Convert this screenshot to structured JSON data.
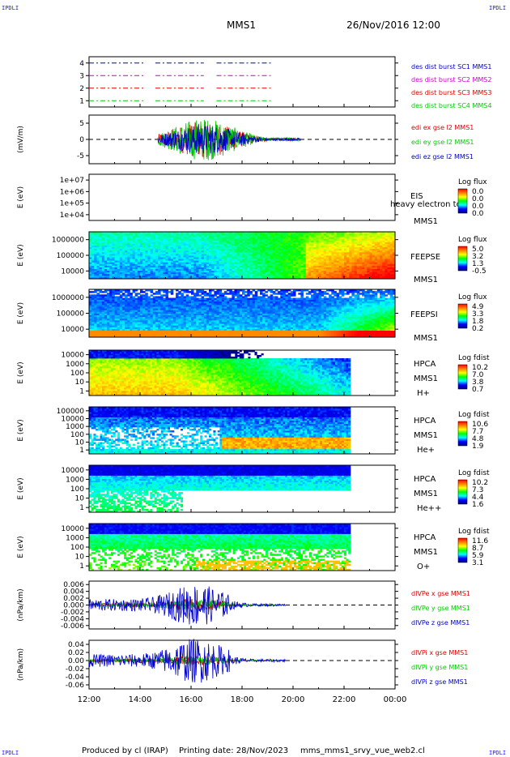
{
  "header": {
    "title": "MMS1",
    "datetime": "26/Nov/2016 12:00",
    "corner_label": "IPDLI"
  },
  "footer": {
    "produced_by": "Produced by cl (IRAP)",
    "printing_date": "Printing date: 28/Nov/2023",
    "file_name": "mms_mms1_srvy_vue_web2.cl"
  },
  "time_axis": {
    "tick_labels": [
      "12:00",
      "14:00",
      "16:00",
      "18:00",
      "20:00",
      "22:00",
      "00:00"
    ]
  },
  "colors": {
    "black": "#000000",
    "red": "#dd0000",
    "green": "#00cc00",
    "blue": "#0000cc",
    "magenta": "#cc00cc",
    "spectrogram_scale": [
      "#000080",
      "#0000ff",
      "#00ffff",
      "#00ff00",
      "#ffff00",
      "#ff8000",
      "#ff0000"
    ]
  },
  "chart_data": [
    {
      "type": "line",
      "id": "burst",
      "ylabel": "",
      "ylim": [
        0.5,
        4.5
      ],
      "yticks": [
        "1",
        "2",
        "3",
        "4"
      ],
      "series": [
        {
          "name": "des dist burst SC1 MMS1",
          "color": "#0000cc",
          "level": 4,
          "segments": [
            [
              0,
              2.2
            ],
            [
              2.6,
              4.5
            ],
            [
              5.0,
              7.2
            ]
          ]
        },
        {
          "name": "des dist burst SC2 MMS2",
          "color": "#cc00cc",
          "level": 3,
          "segments": [
            [
              0,
              2.2
            ],
            [
              2.6,
              4.5
            ],
            [
              5.0,
              7.2
            ]
          ]
        },
        {
          "name": "des dist burst SC3 MMS3",
          "color": "#dd0000",
          "level": 2,
          "segments": [
            [
              0,
              2.2
            ],
            [
              2.6,
              4.5
            ],
            [
              5.0,
              7.2
            ]
          ]
        },
        {
          "name": "des dist burst SC4 MMS4",
          "color": "#00cc00",
          "level": 1,
          "segments": [
            [
              0,
              2.2
            ],
            [
              2.6,
              4.5
            ],
            [
              5.0,
              7.2
            ]
          ]
        }
      ],
      "series_labels_top_to_bottom": [
        "des dist burst SC1 MMS1",
        "des dist burst SC2 MMS2",
        "des dist burst SC3 MMS3",
        "des dist burst SC4 MMS4"
      ]
    },
    {
      "type": "line",
      "id": "edi",
      "ylabel": "(mV/m)",
      "ylim": [
        -8,
        8
      ],
      "yticks": [
        "-5",
        "0",
        "5"
      ],
      "active_range_hours": [
        2.7,
        8.3
      ],
      "series": [
        {
          "name": "edi ex gse l2 MMS1",
          "color": "#dd0000",
          "amplitude": 6
        },
        {
          "name": "edi ey gse l2 MMS1",
          "color": "#00cc00",
          "amplitude": 7
        },
        {
          "name": "edi ez gse l2 MMS1",
          "color": "#0000cc",
          "amplitude": 5
        }
      ]
    },
    {
      "type": "heatmap",
      "id": "eis",
      "ylabel": "E (eV)",
      "yticks": [
        "1e+04",
        "1e+05",
        "1e+06",
        "1e+07"
      ],
      "instrument": "EIS",
      "overlay_text": "heavy electron to",
      "spacecraft": "MMS1",
      "cbar_title": "Log flux",
      "cbar_ticks": [
        "0.0",
        "0.0",
        "0.0",
        "0.0"
      ],
      "empty": true
    },
    {
      "type": "heatmap",
      "id": "feepse",
      "ylabel": "E (eV)",
      "yticks": [
        "10000",
        "100000",
        "1000000"
      ],
      "instrument": "FEEPSE",
      "spacecraft": "MMS1",
      "cbar_title": "Log flux",
      "cbar_ticks": [
        "5.0",
        "3.2",
        "1.3",
        "-0.5"
      ],
      "data_end_hours": 12
    },
    {
      "type": "heatmap",
      "id": "feepsi",
      "ylabel": "E (eV)",
      "yticks": [
        "10000",
        "100000",
        "1000000"
      ],
      "instrument": "FEEPSI",
      "spacecraft": "MMS1",
      "cbar_title": "Log flux",
      "cbar_ticks": [
        "4.9",
        "3.3",
        "1.8",
        "0.2"
      ],
      "data_end_hours": 12
    },
    {
      "type": "heatmap",
      "id": "hpca_h",
      "ylabel": "E (eV)",
      "yticks": [
        "1",
        "10",
        "100",
        "1000",
        "10000"
      ],
      "instrument": "HPCA",
      "spacecraft": "MMS1",
      "species": "H+",
      "cbar_title": "Log fdist",
      "cbar_ticks": [
        "10.2",
        "7.0",
        "3.8",
        "0.7"
      ],
      "data_end_hours": 10.25
    },
    {
      "type": "heatmap",
      "id": "hpca_he",
      "ylabel": "E (eV)",
      "yticks": [
        "1",
        "10",
        "100",
        "1000",
        "10000",
        "100000"
      ],
      "instrument": "HPCA",
      "spacecraft": "MMS1",
      "species": "He+",
      "cbar_title": "Log fdist",
      "cbar_ticks": [
        "10.6",
        "7.7",
        "4.8",
        "1.9"
      ],
      "data_end_hours": 10.25
    },
    {
      "type": "heatmap",
      "id": "hpca_hepp",
      "ylabel": "E (eV)",
      "yticks": [
        "1",
        "10",
        "100",
        "1000",
        "10000"
      ],
      "instrument": "HPCA",
      "spacecraft": "MMS1",
      "species": "He++",
      "cbar_title": "Log fdist",
      "cbar_ticks": [
        "10.2",
        "7.3",
        "4.4",
        "1.6"
      ],
      "data_end_hours": 10.25
    },
    {
      "type": "heatmap",
      "id": "hpca_o",
      "ylabel": "E (eV)",
      "yticks": [
        "1",
        "10",
        "100",
        "1000",
        "10000"
      ],
      "instrument": "HPCA",
      "spacecraft": "MMS1",
      "species": "O+",
      "cbar_title": "Log fdist",
      "cbar_ticks": [
        "11.6",
        "8.7",
        "5.9",
        "3.1"
      ],
      "data_end_hours": 10.25
    },
    {
      "type": "line",
      "id": "divpe",
      "ylabel": "(nPa/km)",
      "ylim": [
        -0.007,
        0.007
      ],
      "yticks": [
        "-0.006",
        "-0.004",
        "-0.002",
        "0.000",
        "0.002",
        "0.004",
        "0.006"
      ],
      "active_range_hours": [
        0,
        7.7
      ],
      "series": [
        {
          "name": "dIVPe x gse MMS1",
          "color": "#dd0000",
          "amplitude": 0.0015
        },
        {
          "name": "dIVPe y gse MMS1",
          "color": "#00cc00",
          "amplitude": 0.0015
        },
        {
          "name": "dIVPe z gse MMS1",
          "color": "#0000cc",
          "amplitude": 0.005
        }
      ]
    },
    {
      "type": "line",
      "id": "divpi",
      "ylabel": "(nPa/km)",
      "ylim": [
        -0.07,
        0.05
      ],
      "yticks": [
        "-0.06",
        "-0.04",
        "-0.02",
        "0.00",
        "0.02",
        "0.04"
      ],
      "active_range_hours": [
        0,
        7.7
      ],
      "series": [
        {
          "name": "dIVPi x gse MMS1",
          "color": "#dd0000",
          "amplitude": 0.01
        },
        {
          "name": "dIVPi y gse MMS1",
          "color": "#00cc00",
          "amplitude": 0.01
        },
        {
          "name": "dIVPi z gse MMS1",
          "color": "#0000cc",
          "amplitude": 0.045
        }
      ]
    }
  ]
}
